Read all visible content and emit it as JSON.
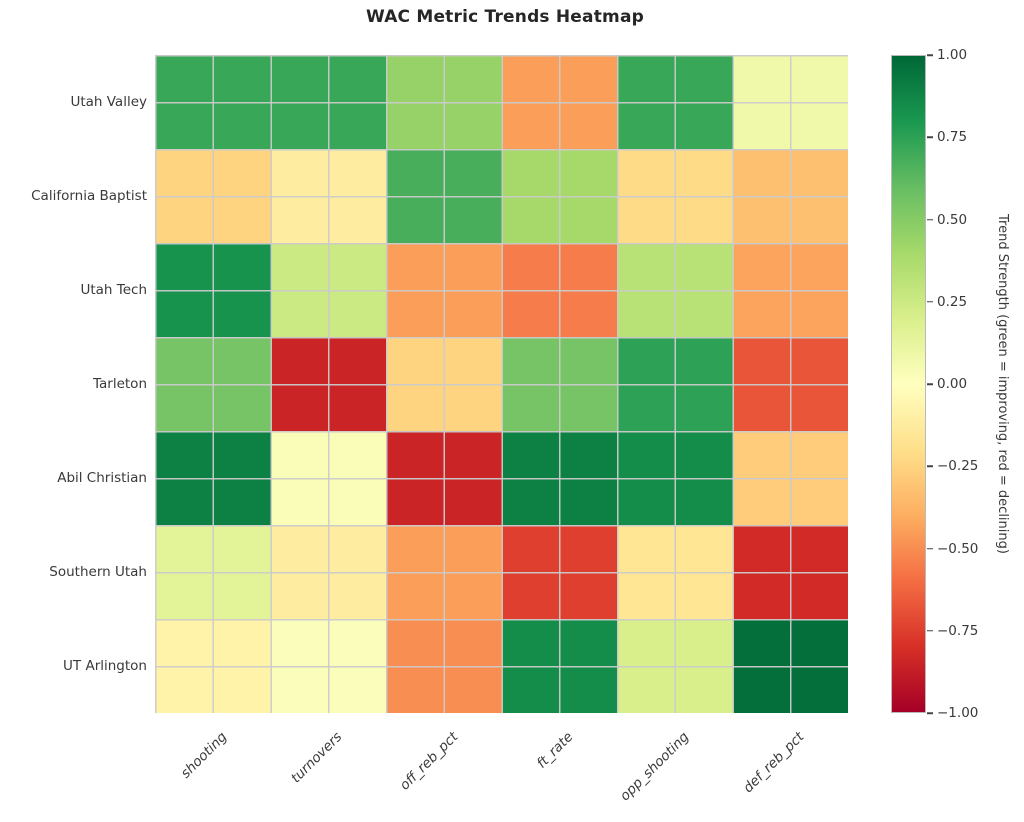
{
  "title": "WAC Metric Trends Heatmap",
  "chart_data": {
    "type": "heatmap",
    "rows": [
      "Utah Valley",
      "California Baptist",
      "Utah Tech",
      "Tarleton",
      "Abil Christian",
      "Southern Utah",
      "UT Arlington"
    ],
    "columns": [
      "shooting",
      "turnovers",
      "off_reb_pct",
      "ft_rate",
      "opp_shooting",
      "def_reb_pct"
    ],
    "values": [
      [
        0.72,
        0.72,
        0.45,
        -0.45,
        0.72,
        0.08
      ],
      [
        -0.25,
        -0.12,
        0.68,
        0.4,
        -0.22,
        -0.33
      ],
      [
        0.82,
        0.25,
        -0.45,
        -0.55,
        0.33,
        -0.43
      ],
      [
        0.55,
        -0.85,
        -0.25,
        0.55,
        0.75,
        -0.68
      ],
      [
        0.9,
        0.03,
        -0.85,
        0.9,
        0.85,
        -0.28
      ],
      [
        0.15,
        -0.12,
        -0.45,
        -0.75,
        -0.16,
        -0.82
      ],
      [
        -0.08,
        0.02,
        -0.5,
        0.85,
        0.2,
        0.97
      ]
    ],
    "vmin": -1.0,
    "vmax": 1.0,
    "grid": true,
    "colormap": "RdYlGn",
    "colormap_anchors": [
      "#a50026",
      "#d73027",
      "#f46d43",
      "#fdae61",
      "#fee08b",
      "#ffffbf",
      "#d9ef8b",
      "#a6d96a",
      "#66bd63",
      "#1a9850",
      "#006837"
    ],
    "colorbar": {
      "label": "Trend Strength (green = improving, red = declining)",
      "ticks": [
        "1.00",
        "0.75",
        "0.50",
        "0.25",
        "0.00",
        "−0.25",
        "−0.50",
        "−0.75",
        "−1.00"
      ],
      "tick_values": [
        1.0,
        0.75,
        0.5,
        0.25,
        0.0,
        -0.25,
        -0.5,
        -0.75,
        -1.0
      ]
    }
  }
}
